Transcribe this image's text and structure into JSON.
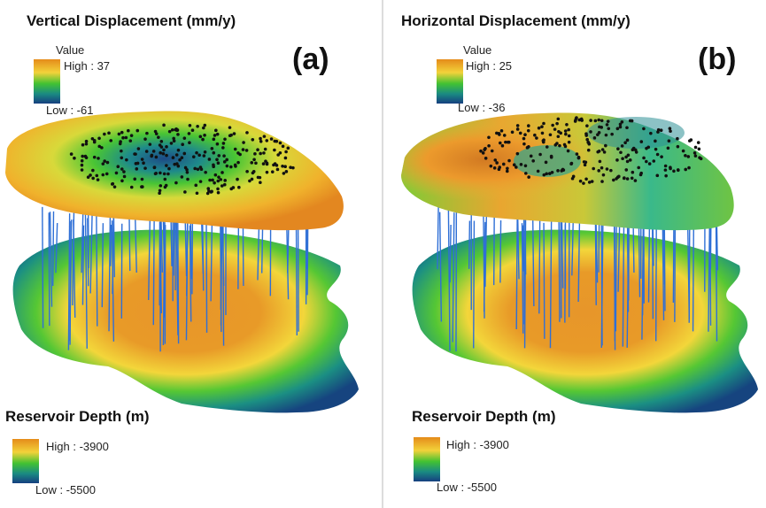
{
  "panels": [
    {
      "title": "Vertical Displacement (mm/y)",
      "letter": "(a)",
      "legend": {
        "heading": "Value",
        "high": "High : 37",
        "low": "Low : -61"
      },
      "reservoir": {
        "title": "Reservoir Depth (m)",
        "high": "High : -3900",
        "low": "Low : -5500"
      }
    },
    {
      "title": "Horizontal Displacement (mm/y)",
      "letter": "(b)",
      "legend": {
        "heading": "Value",
        "high": "High : 25",
        "low": "Low : -36"
      },
      "reservoir": {
        "title": "Reservoir Depth (m)",
        "high": "High : -3900",
        "low": "Low : -5500"
      }
    }
  ],
  "colors": {
    "ramp_high": "#e58b1a",
    "ramp_mid_high": "#f2d23a",
    "ramp_mid": "#42c232",
    "ramp_mid_low": "#1a8b82",
    "ramp_low": "#163f80",
    "well_line": "#2f6fd6",
    "station_dot": "#111111"
  }
}
